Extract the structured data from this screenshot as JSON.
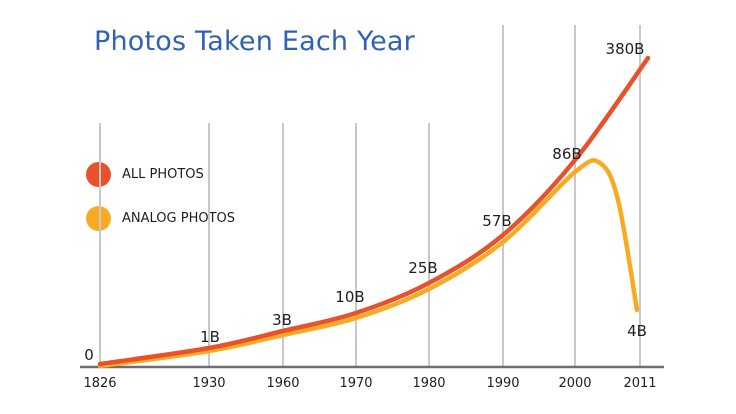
{
  "chart_data": {
    "type": "line",
    "title": "Photos Taken Each Year",
    "xlabel": "",
    "ylabel": "",
    "x_ticks": [
      "1826",
      "1930",
      "1960",
      "1970",
      "1980",
      "1990",
      "2000",
      "2011"
    ],
    "ylim": [
      0,
      400
    ],
    "grid": "vertical",
    "legend_position": "left",
    "series": [
      {
        "name": "ALL PHOTOS",
        "color": "#e8512a",
        "points": [
          {
            "x": "1826",
            "y": 0
          },
          {
            "x": "1930",
            "y": 1,
            "label": "1B"
          },
          {
            "x": "1960",
            "y": 3,
            "label": "3B"
          },
          {
            "x": "1970",
            "y": 10,
            "label": "10B"
          },
          {
            "x": "1980",
            "y": 25,
            "label": "25B"
          },
          {
            "x": "1990",
            "y": 57,
            "label": "57B"
          },
          {
            "x": "2000",
            "y": 86,
            "label": "86B"
          },
          {
            "x": "2011",
            "y": 380,
            "label": "380B"
          }
        ]
      },
      {
        "name": "ANALOG PHOTOS",
        "color": "#f9aa22",
        "points": [
          {
            "x": "1826",
            "y": 0
          },
          {
            "x": "1930",
            "y": 1
          },
          {
            "x": "1960",
            "y": 3
          },
          {
            "x": "1970",
            "y": 10
          },
          {
            "x": "1980",
            "y": 25
          },
          {
            "x": "1990",
            "y": 57
          },
          {
            "x": "2000",
            "y": 86
          },
          {
            "x": "2011",
            "y": 4,
            "label": "4B"
          }
        ]
      }
    ],
    "origin_label": "0",
    "axis_color": "#6e6e6e",
    "grid_color": "#c8c8c8"
  }
}
